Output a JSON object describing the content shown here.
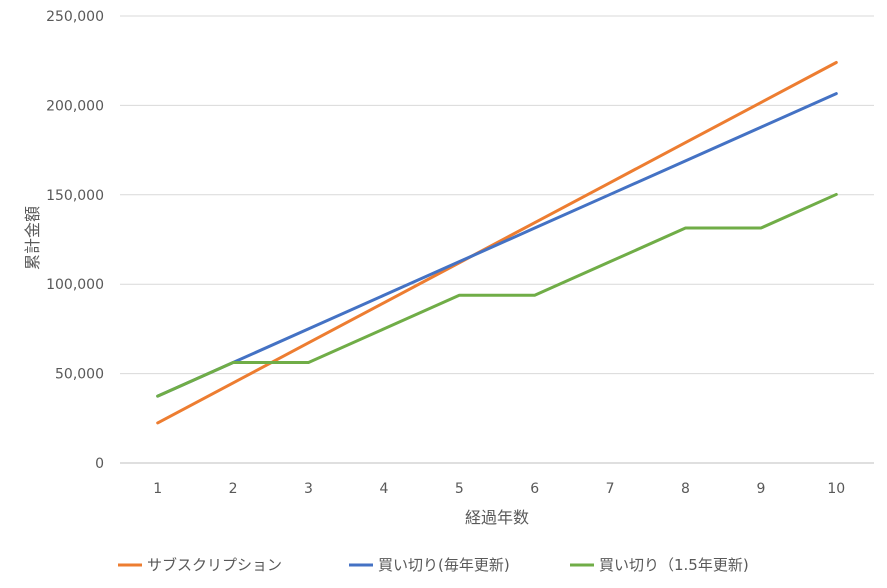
{
  "chart_data": {
    "type": "line",
    "title": "",
    "xlabel": "経過年数",
    "ylabel": "累計金額",
    "categories": [
      "1",
      "2",
      "3",
      "4",
      "5",
      "6",
      "7",
      "8",
      "9",
      "10"
    ],
    "ylim": [
      0,
      250000
    ],
    "yticks": [
      0,
      50000,
      100000,
      150000,
      200000,
      250000
    ],
    "ytick_labels": [
      "0",
      "50,000",
      "100,000",
      "150,000",
      "200,000",
      "250,000"
    ],
    "grid": true,
    "legend_position": "bottom",
    "series": [
      {
        "name": "サブスクリプション",
        "color": "#ED7D31",
        "values": [
          22400,
          44800,
          67200,
          89600,
          112000,
          134400,
          156800,
          179200,
          201600,
          224000
        ]
      },
      {
        "name": "買い切り(毎年更新)",
        "color": "#4472C4",
        "values": [
          37400,
          56200,
          75000,
          93800,
          112600,
          131400,
          150200,
          169000,
          187800,
          206600
        ]
      },
      {
        "name": "買い切り（1.5年更新)",
        "color": "#70AD47",
        "values": [
          37400,
          56200,
          56200,
          75000,
          93800,
          93800,
          112600,
          131400,
          131400,
          150200
        ]
      }
    ]
  }
}
